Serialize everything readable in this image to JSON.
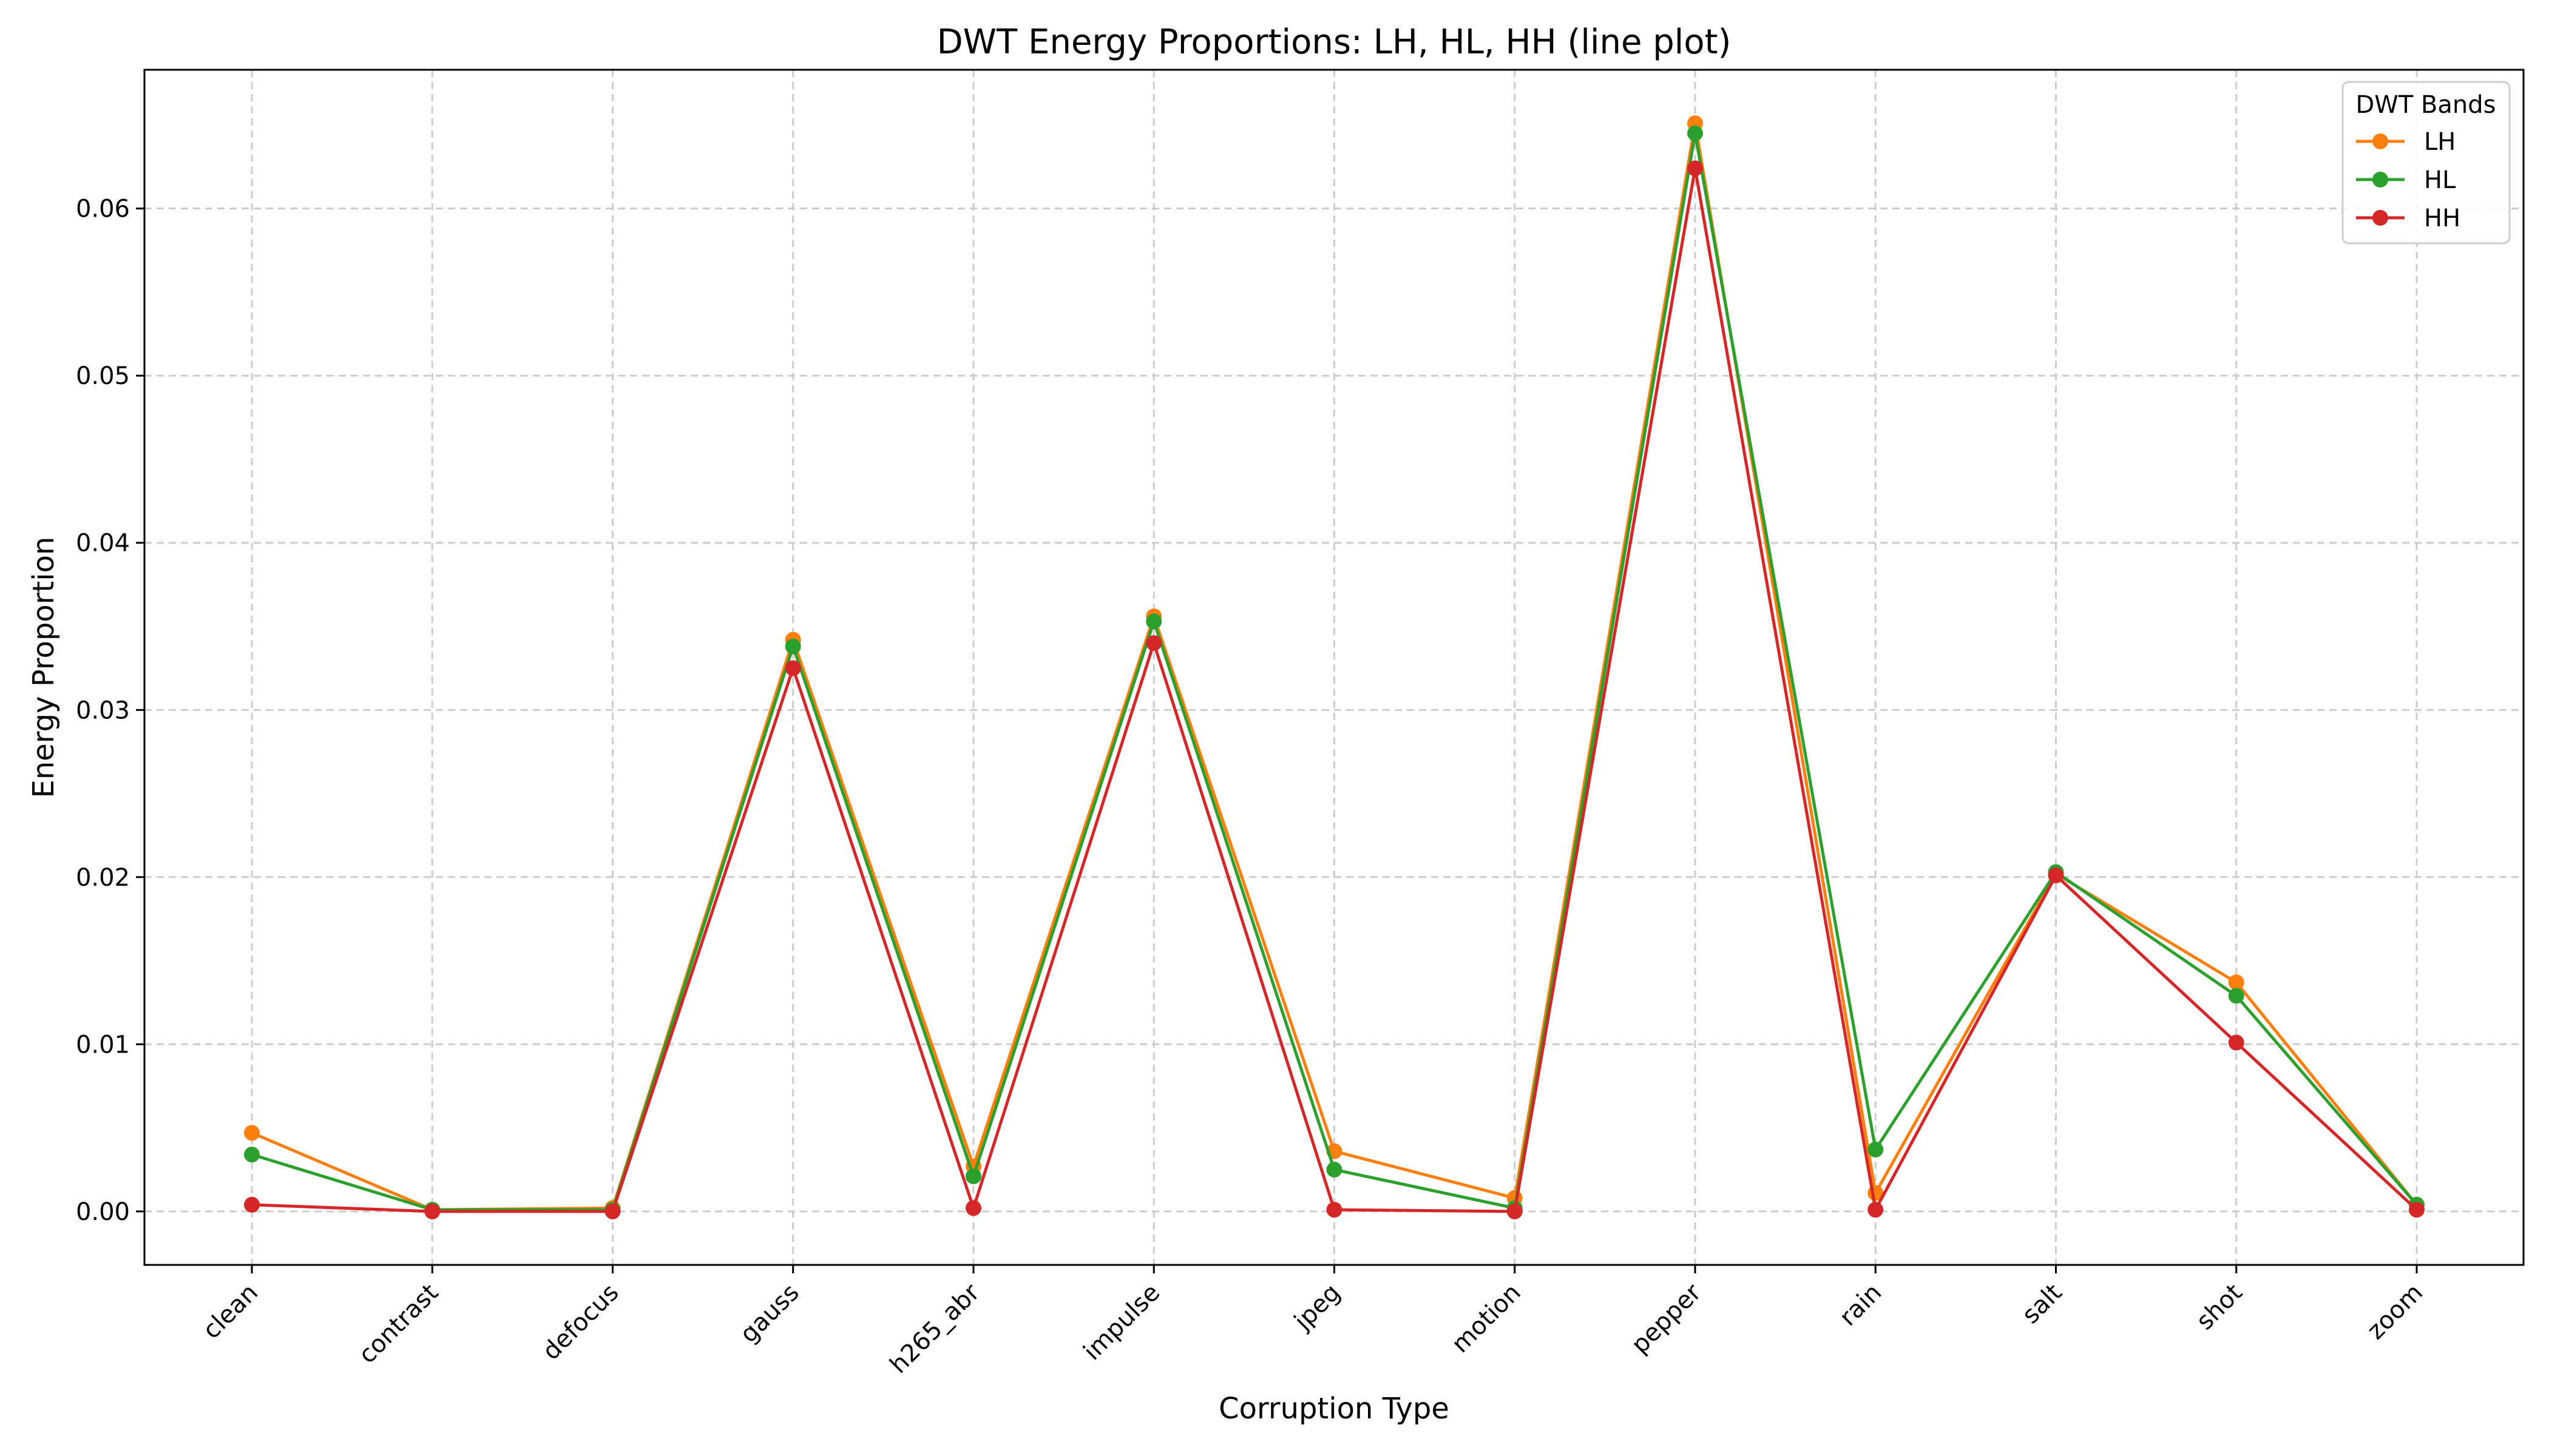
{
  "chart_data": {
    "type": "line",
    "title": "DWT Energy Proportions: LH, HL, HH (line plot)",
    "xlabel": "Corruption Type",
    "ylabel": "Energy Proportion",
    "categories": [
      "clean",
      "contrast",
      "defocus",
      "gauss",
      "h265_abr",
      "impulse",
      "jpeg",
      "motion",
      "pepper",
      "rain",
      "salt",
      "shot",
      "zoom"
    ],
    "ylim": [
      -0.0032,
      0.0683
    ],
    "yticks": [
      0.0,
      0.01,
      0.02,
      0.03,
      0.04,
      0.05,
      0.06
    ],
    "ytick_labels": [
      "0.00",
      "0.01",
      "0.02",
      "0.03",
      "0.04",
      "0.05",
      "0.06"
    ],
    "grid": true,
    "legend": {
      "title": "DWT Bands",
      "placement": "top-right"
    },
    "series": [
      {
        "name": "LH",
        "color": "#ff7f0e",
        "values": [
          0.0047,
          0.0001,
          0.0002,
          0.0342,
          0.0027,
          0.0356,
          0.0036,
          0.0008,
          0.0651,
          0.0011,
          0.0202,
          0.0137,
          0.0004
        ]
      },
      {
        "name": "HL",
        "color": "#2ca02c",
        "values": [
          0.0034,
          0.0001,
          0.0001,
          0.0338,
          0.0021,
          0.0353,
          0.0025,
          0.0002,
          0.0645,
          0.0037,
          0.0203,
          0.0129,
          0.0004
        ]
      },
      {
        "name": "HH",
        "color": "#d62728",
        "values": [
          0.0004,
          0.0,
          0.0,
          0.0325,
          0.0002,
          0.034,
          0.0001,
          0.0,
          0.0624,
          0.0001,
          0.0201,
          0.0101,
          0.0001
        ]
      }
    ]
  }
}
